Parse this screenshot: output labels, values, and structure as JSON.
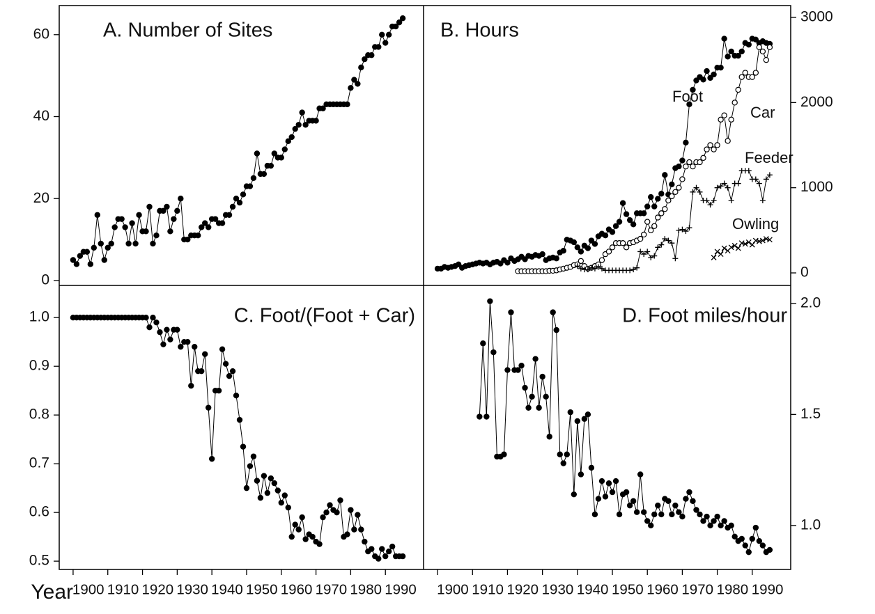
{
  "chart_data": [
    {
      "type": "line",
      "title": "A. Number of Sites",
      "yaxis_side": "left",
      "marker": "filled",
      "color": "#000000",
      "x": [
        1900,
        1901,
        1902,
        1903,
        1904,
        1905,
        1906,
        1907,
        1908,
        1909,
        1910,
        1911,
        1912,
        1913,
        1914,
        1915,
        1916,
        1917,
        1918,
        1919,
        1920,
        1921,
        1922,
        1923,
        1924,
        1925,
        1926,
        1927,
        1928,
        1929,
        1930,
        1931,
        1932,
        1933,
        1934,
        1935,
        1936,
        1937,
        1938,
        1939,
        1940,
        1941,
        1942,
        1943,
        1944,
        1945,
        1946,
        1947,
        1948,
        1949,
        1950,
        1951,
        1952,
        1953,
        1954,
        1955,
        1956,
        1957,
        1958,
        1959,
        1960,
        1961,
        1962,
        1963,
        1964,
        1965,
        1966,
        1967,
        1968,
        1969,
        1970,
        1971,
        1972,
        1973,
        1974,
        1975,
        1976,
        1977,
        1978,
        1979,
        1980,
        1981,
        1982,
        1983,
        1984,
        1985,
        1986,
        1987,
        1988,
        1989,
        1990,
        1991,
        1992,
        1993,
        1994,
        1995
      ],
      "values": [
        5,
        4,
        6,
        7,
        7,
        4,
        8,
        16,
        9,
        5,
        8,
        9,
        13,
        15,
        15,
        13,
        9,
        14,
        9,
        16,
        12,
        12,
        18,
        9,
        11,
        17,
        17,
        18,
        12,
        15,
        17,
        20,
        10,
        10,
        11,
        11,
        11,
        13,
        14,
        13,
        15,
        15,
        14,
        14,
        16,
        16,
        18,
        20,
        19,
        21,
        23,
        23,
        25,
        31,
        26,
        26,
        28,
        28,
        31,
        30,
        30,
        32,
        34,
        35,
        37,
        38,
        41,
        38,
        39,
        39,
        39,
        42,
        42,
        43,
        43,
        43,
        43,
        43,
        43,
        43,
        47,
        49,
        48,
        52,
        54,
        55,
        55,
        57,
        57,
        60,
        58,
        60,
        62,
        62,
        63,
        64
      ],
      "xlim": [
        1896,
        2001
      ],
      "ylim": [
        -1.2,
        67.1
      ],
      "yticks": [
        0,
        20,
        40,
        60
      ]
    },
    {
      "type": "line",
      "title": "B. Hours",
      "yaxis_side": "right",
      "x": [
        1900,
        1901,
        1902,
        1903,
        1904,
        1905,
        1906,
        1907,
        1908,
        1909,
        1910,
        1911,
        1912,
        1913,
        1914,
        1915,
        1916,
        1917,
        1918,
        1919,
        1920,
        1921,
        1922,
        1923,
        1924,
        1925,
        1926,
        1927,
        1928,
        1929,
        1930,
        1931,
        1932,
        1933,
        1934,
        1935,
        1936,
        1937,
        1938,
        1939,
        1940,
        1941,
        1942,
        1943,
        1944,
        1945,
        1946,
        1947,
        1948,
        1949,
        1950,
        1951,
        1952,
        1953,
        1954,
        1955,
        1956,
        1957,
        1958,
        1959,
        1960,
        1961,
        1962,
        1963,
        1964,
        1965,
        1966,
        1967,
        1968,
        1969,
        1970,
        1971,
        1972,
        1973,
        1974,
        1975,
        1976,
        1977,
        1978,
        1979,
        1980,
        1981,
        1982,
        1983,
        1984,
        1985,
        1986,
        1987,
        1988,
        1989,
        1990,
        1991,
        1992,
        1993,
        1994,
        1995
      ],
      "series": [
        {
          "name": "Foot",
          "marker": "filled",
          "color": "#000000",
          "values": [
            50,
            50,
            70,
            60,
            70,
            80,
            100,
            60,
            80,
            90,
            100,
            110,
            120,
            110,
            120,
            100,
            120,
            130,
            110,
            150,
            120,
            170,
            140,
            160,
            190,
            160,
            200,
            190,
            210,
            200,
            220,
            150,
            170,
            180,
            170,
            240,
            260,
            390,
            380,
            360,
            300,
            250,
            320,
            290,
            380,
            340,
            430,
            460,
            440,
            510,
            480,
            550,
            600,
            820,
            690,
            620,
            570,
            700,
            700,
            700,
            780,
            890,
            780,
            870,
            930,
            1150,
            920,
            1040,
            1230,
            1250,
            1320,
            1530,
            1980,
            2150,
            2260,
            2300,
            2270,
            2370,
            2290,
            2330,
            2410,
            2410,
            2750,
            2540,
            2600,
            2550,
            2550,
            2600,
            2700,
            2680,
            2750,
            2740,
            2700,
            2720,
            2700,
            2690
          ]
        },
        {
          "name": "Car",
          "marker": "open",
          "color": "#000000",
          "values": [
            null,
            null,
            null,
            null,
            null,
            null,
            null,
            null,
            null,
            null,
            null,
            null,
            null,
            null,
            null,
            null,
            null,
            null,
            null,
            null,
            null,
            null,
            null,
            20,
            20,
            20,
            20,
            20,
            20,
            20,
            20,
            20,
            25,
            25,
            30,
            40,
            50,
            60,
            70,
            90,
            100,
            140,
            80,
            50,
            60,
            80,
            100,
            150,
            220,
            250,
            300,
            350,
            350,
            350,
            300,
            350,
            360,
            380,
            400,
            450,
            600,
            500,
            550,
            650,
            700,
            750,
            850,
            900,
            950,
            1000,
            1100,
            1250,
            1300,
            1250,
            1300,
            1300,
            1350,
            1450,
            1500,
            1450,
            1500,
            1800,
            1850,
            1550,
            1800,
            2000,
            2150,
            2300,
            2350,
            2300,
            2300,
            2350,
            2650,
            2600,
            2500,
            2650
          ]
        },
        {
          "name": "Feeder",
          "marker": "plus",
          "color": "#000000",
          "values": [
            null,
            null,
            null,
            null,
            null,
            null,
            null,
            null,
            null,
            null,
            null,
            null,
            null,
            null,
            null,
            null,
            null,
            null,
            null,
            null,
            null,
            null,
            null,
            null,
            null,
            null,
            null,
            null,
            null,
            null,
            null,
            null,
            null,
            null,
            null,
            null,
            null,
            null,
            null,
            null,
            80,
            50,
            40,
            40,
            60,
            50,
            70,
            50,
            30,
            30,
            30,
            30,
            30,
            30,
            30,
            30,
            40,
            60,
            250,
            220,
            250,
            180,
            200,
            300,
            330,
            400,
            380,
            350,
            170,
            500,
            510,
            490,
            530,
            950,
            1000,
            950,
            850,
            850,
            800,
            850,
            1000,
            1020,
            1050,
            1000,
            850,
            1050,
            1050,
            1200,
            1200,
            1200,
            1100,
            1100,
            1050,
            850,
            1100,
            1150
          ]
        },
        {
          "name": "Owling",
          "marker": "cross",
          "color": "#000000",
          "values": [
            null,
            null,
            null,
            null,
            null,
            null,
            null,
            null,
            null,
            null,
            null,
            null,
            null,
            null,
            null,
            null,
            null,
            null,
            null,
            null,
            null,
            null,
            null,
            null,
            null,
            null,
            null,
            null,
            null,
            null,
            null,
            null,
            null,
            null,
            null,
            null,
            null,
            null,
            null,
            null,
            null,
            null,
            null,
            null,
            null,
            null,
            null,
            null,
            null,
            null,
            null,
            null,
            null,
            null,
            null,
            null,
            null,
            null,
            null,
            null,
            null,
            null,
            null,
            null,
            null,
            null,
            null,
            null,
            null,
            null,
            null,
            null,
            null,
            null,
            null,
            null,
            null,
            null,
            null,
            180,
            250,
            220,
            290,
            260,
            300,
            320,
            290,
            350,
            340,
            360,
            330,
            380,
            370,
            380,
            400,
            390
          ]
        }
      ],
      "xlim": [
        1896,
        2001
      ],
      "ylim": [
        -147,
        3139
      ],
      "yticks": [
        0,
        1000,
        2000,
        3000
      ]
    },
    {
      "type": "line",
      "title": "C. Foot/(Foot + Car)",
      "yaxis_side": "left",
      "marker": "filled",
      "color": "#000000",
      "xlabel": "Year",
      "x": [
        1900,
        1901,
        1902,
        1903,
        1904,
        1905,
        1906,
        1907,
        1908,
        1909,
        1910,
        1911,
        1912,
        1913,
        1914,
        1915,
        1916,
        1917,
        1918,
        1919,
        1920,
        1921,
        1922,
        1923,
        1924,
        1925,
        1926,
        1927,
        1928,
        1929,
        1930,
        1931,
        1932,
        1933,
        1934,
        1935,
        1936,
        1937,
        1938,
        1939,
        1940,
        1941,
        1942,
        1943,
        1944,
        1945,
        1946,
        1947,
        1948,
        1949,
        1950,
        1951,
        1952,
        1953,
        1954,
        1955,
        1956,
        1957,
        1958,
        1959,
        1960,
        1961,
        1962,
        1963,
        1964,
        1965,
        1966,
        1967,
        1968,
        1969,
        1970,
        1971,
        1972,
        1973,
        1974,
        1975,
        1976,
        1977,
        1978,
        1979,
        1980,
        1981,
        1982,
        1983,
        1984,
        1985,
        1986,
        1987,
        1988,
        1989,
        1990,
        1991,
        1992,
        1993,
        1994,
        1995
      ],
      "values": [
        1,
        1,
        1,
        1,
        1,
        1,
        1,
        1,
        1,
        1,
        1,
        1,
        1,
        1,
        1,
        1,
        1,
        1,
        1,
        1,
        1,
        1,
        0.98,
        1.0,
        0.99,
        0.97,
        0.945,
        0.975,
        0.955,
        0.975,
        0.975,
        0.94,
        0.95,
        0.95,
        0.86,
        0.94,
        0.89,
        0.89,
        0.925,
        0.815,
        0.71,
        0.85,
        0.85,
        0.935,
        0.905,
        0.88,
        0.89,
        0.84,
        0.79,
        0.735,
        0.65,
        0.695,
        0.715,
        0.665,
        0.63,
        0.675,
        0.64,
        0.67,
        0.66,
        0.645,
        0.62,
        0.635,
        0.61,
        0.55,
        0.575,
        0.565,
        0.59,
        0.545,
        0.555,
        0.55,
        0.54,
        0.535,
        0.59,
        0.6,
        0.615,
        0.605,
        0.6,
        0.625,
        0.55,
        0.555,
        0.605,
        0.565,
        0.595,
        0.565,
        0.54,
        0.52,
        0.525,
        0.51,
        0.505,
        0.525,
        0.51,
        0.52,
        0.53,
        0.51,
        0.51,
        0.51
      ],
      "xlim": [
        1896,
        2001
      ],
      "xticks": [
        1900,
        1910,
        1920,
        1930,
        1940,
        1950,
        1960,
        1970,
        1980,
        1990
      ],
      "ylim": [
        0.483,
        1.066
      ],
      "yticks": [
        0.5,
        0.6,
        0.7,
        0.8,
        0.9,
        {
          "value": 1,
          "label": "1.0"
        }
      ]
    },
    {
      "type": "line",
      "title": "D. Foot miles/hour",
      "yaxis_side": "right",
      "marker": "filled",
      "color": "#000000",
      "x": [
        1900,
        1901,
        1902,
        1903,
        1904,
        1905,
        1906,
        1907,
        1908,
        1909,
        1910,
        1911,
        1912,
        1913,
        1914,
        1915,
        1916,
        1917,
        1918,
        1919,
        1920,
        1921,
        1922,
        1923,
        1924,
        1925,
        1926,
        1927,
        1928,
        1929,
        1930,
        1931,
        1932,
        1933,
        1934,
        1935,
        1936,
        1937,
        1938,
        1939,
        1940,
        1941,
        1942,
        1943,
        1944,
        1945,
        1946,
        1947,
        1948,
        1949,
        1950,
        1951,
        1952,
        1953,
        1954,
        1955,
        1956,
        1957,
        1958,
        1959,
        1960,
        1961,
        1962,
        1963,
        1964,
        1965,
        1966,
        1967,
        1968,
        1969,
        1970,
        1971,
        1972,
        1973,
        1974,
        1975,
        1976,
        1977,
        1978,
        1979,
        1980,
        1981,
        1982,
        1983,
        1984,
        1985,
        1986,
        1987,
        1988,
        1989,
        1990,
        1991,
        1992,
        1993,
        1994,
        1995
      ],
      "values": [
        null,
        null,
        null,
        null,
        null,
        null,
        null,
        null,
        null,
        null,
        null,
        null,
        1.49,
        1.82,
        1.49,
        2.01,
        1.78,
        1.31,
        1.31,
        1.32,
        1.7,
        1.96,
        1.7,
        1.7,
        1.72,
        1.62,
        1.53,
        1.58,
        1.75,
        1.53,
        1.67,
        1.58,
        1.4,
        1.96,
        1.88,
        1.32,
        1.28,
        1.32,
        1.51,
        1.14,
        1.47,
        1.23,
        1.48,
        1.5,
        1.26,
        1.05,
        1.12,
        1.2,
        1.13,
        1.19,
        1.15,
        1.2,
        1.05,
        1.14,
        1.15,
        1.09,
        1.11,
        1.06,
        1.23,
        1.06,
        1.02,
        1.0,
        1.05,
        1.09,
        1.05,
        1.12,
        1.11,
        1.05,
        1.09,
        1.06,
        1.04,
        1.12,
        1.15,
        1.11,
        1.07,
        1.05,
        1.02,
        1.04,
        1.0,
        1.02,
        1.04,
        1.0,
        1.02,
        0.99,
        1.0,
        0.95,
        0.93,
        0.94,
        0.91,
        0.88,
        0.94,
        0.99,
        0.93,
        0.91,
        0.88,
        0.89
      ],
      "xlim": [
        1896,
        2001
      ],
      "xticks": [
        1900,
        1910,
        1920,
        1930,
        1940,
        1950,
        1960,
        1970,
        1980,
        1990
      ],
      "ylim": [
        0.802,
        2.081
      ],
      "yticks": [
        {
          "value": 1,
          "label": "1.0"
        },
        1.5,
        {
          "value": 2,
          "label": "2.0"
        }
      ]
    }
  ]
}
